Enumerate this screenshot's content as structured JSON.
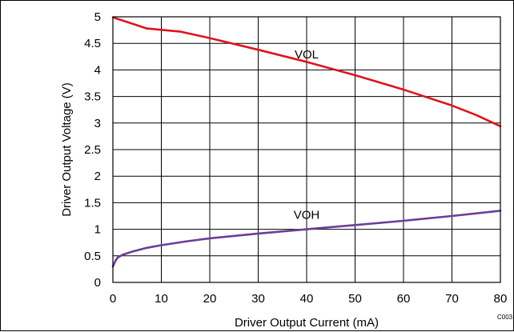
{
  "chart_data": {
    "type": "line",
    "xlabel": "Driver Output Current (mA)",
    "ylabel": "Driver Output Voltage (V)",
    "xlim": [
      0,
      80
    ],
    "ylim": [
      0,
      5
    ],
    "xticks": [
      "0",
      "10",
      "20",
      "30",
      "40",
      "50",
      "60",
      "70",
      "80"
    ],
    "yticks": [
      "0",
      "0.5",
      "1",
      "1.5",
      "2",
      "2.5",
      "3",
      "3.5",
      "4",
      "4.5",
      "5"
    ],
    "grid": true,
    "figure_code": "C003",
    "series": [
      {
        "name": "VOL",
        "color": "#e0131d",
        "label_at": [
          40,
          4.22
        ],
        "x": [
          0,
          3,
          7,
          14,
          20,
          30,
          40,
          50,
          60,
          70,
          75,
          80
        ],
        "y": [
          4.99,
          4.9,
          4.78,
          4.72,
          4.6,
          4.38,
          4.15,
          3.9,
          3.63,
          3.33,
          3.15,
          2.94
        ]
      },
      {
        "name": "VOH",
        "color": "#6b3d9a",
        "label_at": [
          40,
          1.2
        ],
        "x": [
          0,
          0.5,
          1,
          2,
          4,
          7,
          10,
          15,
          20,
          30,
          40,
          50,
          60,
          70,
          80
        ],
        "y": [
          0.3,
          0.4,
          0.47,
          0.52,
          0.58,
          0.65,
          0.7,
          0.77,
          0.83,
          0.92,
          1.0,
          1.08,
          1.16,
          1.25,
          1.35
        ]
      }
    ]
  }
}
